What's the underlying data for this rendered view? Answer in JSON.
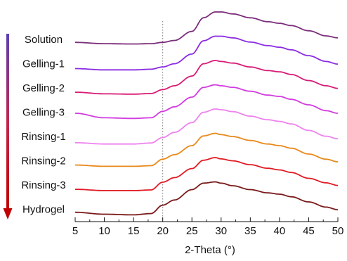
{
  "chart_data": {
    "type": "line",
    "xlabel": "2-Theta (°)",
    "ylabel": "",
    "xlim": [
      5,
      50
    ],
    "xticks": [
      5,
      10,
      15,
      20,
      25,
      30,
      35,
      40,
      45,
      50
    ],
    "tick_labels": [
      "5",
      "10",
      "15",
      "20",
      "25",
      "30",
      "35",
      "40",
      "45",
      "50"
    ],
    "reference_line_x": 20,
    "grid": false,
    "legend": "left",
    "order_arrow_colors": [
      "#5b3fb0",
      "#c0264e",
      "#c00000"
    ],
    "series": [
      {
        "name": "Solution",
        "color": "#7b2d7a",
        "x": [
          5,
          10,
          15,
          18,
          20,
          22,
          25,
          27,
          29,
          30,
          32,
          35,
          38,
          40,
          42,
          45,
          48,
          50
        ],
        "y": [
          0.06,
          0.02,
          0.01,
          0.02,
          0.06,
          0.12,
          0.4,
          0.82,
          1.0,
          1.0,
          0.94,
          0.82,
          0.7,
          0.65,
          0.58,
          0.42,
          0.26,
          0.2
        ]
      },
      {
        "name": "Gelling-1",
        "color": "#8a2be2",
        "x": [
          5,
          10,
          15,
          18,
          20,
          22,
          25,
          27,
          29,
          30,
          32,
          35,
          38,
          40,
          42,
          45,
          48,
          50
        ],
        "y": [
          0.0,
          -0.04,
          -0.04,
          -0.02,
          0.05,
          0.15,
          0.45,
          0.86,
          1.0,
          1.0,
          0.95,
          0.82,
          0.71,
          0.66,
          0.58,
          0.4,
          0.22,
          0.14
        ]
      },
      {
        "name": "Gelling-2",
        "color": "#d81b77",
        "x": [
          5,
          10,
          15,
          18,
          20,
          22,
          25,
          27,
          29,
          30,
          32,
          35,
          38,
          40,
          42,
          45,
          48,
          50
        ],
        "y": [
          0.02,
          -0.03,
          -0.04,
          -0.02,
          0.1,
          0.22,
          0.52,
          0.9,
          1.0,
          0.97,
          0.92,
          0.8,
          0.69,
          0.65,
          0.57,
          0.38,
          0.22,
          0.14
        ]
      },
      {
        "name": "Gelling-3",
        "color": "#d23be0",
        "x": [
          5,
          10,
          15,
          18,
          20,
          22,
          25,
          27,
          29,
          30,
          32,
          35,
          38,
          40,
          42,
          45,
          48,
          50
        ],
        "y": [
          0.12,
          -0.02,
          -0.04,
          -0.02,
          0.18,
          0.32,
          0.62,
          0.92,
          1.0,
          0.97,
          0.92,
          0.8,
          0.68,
          0.64,
          0.55,
          0.38,
          0.2,
          0.12
        ]
      },
      {
        "name": "Rinsing-1",
        "color": "#ee82ee",
        "x": [
          5,
          10,
          15,
          18,
          20,
          22,
          25,
          27,
          29,
          30,
          32,
          35,
          38,
          40,
          42,
          45,
          48,
          50
        ],
        "y": [
          -0.04,
          -0.08,
          -0.08,
          -0.05,
          0.12,
          0.28,
          0.58,
          0.9,
          1.0,
          0.98,
          0.92,
          0.78,
          0.67,
          0.62,
          0.54,
          0.34,
          0.16,
          0.08
        ]
      },
      {
        "name": "Rinsing-2",
        "color": "#e8891a",
        "x": [
          5,
          10,
          15,
          18,
          20,
          22,
          25,
          27,
          29,
          30,
          32,
          35,
          38,
          40,
          42,
          45,
          48,
          50
        ],
        "y": [
          0.02,
          -0.02,
          -0.02,
          0.0,
          0.2,
          0.34,
          0.62,
          0.92,
          1.0,
          0.96,
          0.9,
          0.78,
          0.67,
          0.62,
          0.54,
          0.36,
          0.2,
          0.12
        ]
      },
      {
        "name": "Rinsing-3",
        "color": "#e01b24",
        "x": [
          5,
          10,
          15,
          18,
          20,
          22,
          25,
          27,
          29,
          30,
          32,
          35,
          38,
          40,
          42,
          45,
          48,
          50
        ],
        "y": [
          0.02,
          -0.02,
          -0.02,
          0.0,
          0.24,
          0.38,
          0.66,
          0.92,
          1.0,
          0.96,
          0.9,
          0.78,
          0.67,
          0.62,
          0.54,
          0.36,
          0.22,
          0.14
        ]
      },
      {
        "name": "Hydrogel",
        "color": "#7a1a1a",
        "x": [
          5,
          10,
          15,
          18,
          20,
          22,
          25,
          27,
          29,
          30,
          32,
          35,
          38,
          40,
          42,
          45,
          48,
          50
        ],
        "y": [
          0.06,
          0.0,
          -0.02,
          0.02,
          0.28,
          0.44,
          0.76,
          0.96,
          1.0,
          0.96,
          0.88,
          0.76,
          0.66,
          0.62,
          0.54,
          0.38,
          0.22,
          0.14
        ]
      }
    ]
  }
}
